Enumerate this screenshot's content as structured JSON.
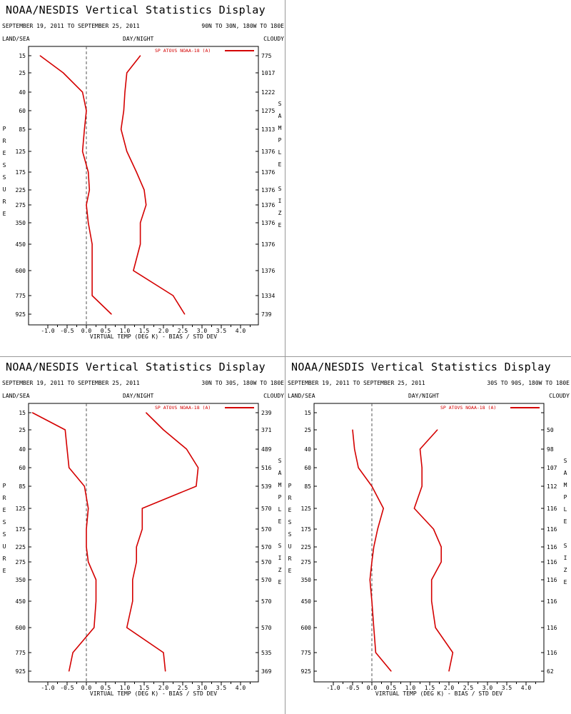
{
  "colors": {
    "series": "#d40000",
    "zero_line": "#555555",
    "frame": "#000000"
  },
  "panels": [
    {
      "title": "NOAA/NESDIS Vertical Statistics Display",
      "dates": "SEPTEMBER 19, 2011 TO SEPTEMBER 25, 2011",
      "region": "90N TO 30N, 180W TO 180E",
      "land_sea": "LAND/SEA",
      "day_night": "DAY/NIGHT",
      "cloudy": "CLOUDY",
      "legend": "SP ATOVS NOAA-18 (A)",
      "xlabel": "VIRTUAL TEMP (DEG K) - BIAS / STD DEV",
      "left_vertical": "PRESSURE",
      "right_vertical": "SAMPLE SIZE",
      "sample_sizes": [
        "775",
        "1017",
        "1222",
        "1275",
        "1313",
        "1376",
        "1376",
        "1376",
        "1376",
        "1376",
        "1376",
        "1376",
        "1334",
        "739"
      ]
    },
    {
      "title": "NOAA/NESDIS Vertical Statistics Display",
      "dates": "SEPTEMBER 19, 2011 TO SEPTEMBER 25, 2011",
      "region": "30N TO 30S, 180W TO 180E",
      "land_sea": "LAND/SEA",
      "day_night": "DAY/NIGHT",
      "cloudy": "CLOUDY",
      "legend": "SP ATOVS NOAA-18 (A)",
      "xlabel": "VIRTUAL TEMP (DEG K) - BIAS / STD DEV",
      "left_vertical": "PRESSURE",
      "right_vertical": "SAMPLE SIZE",
      "sample_sizes": [
        "239",
        "371",
        "489",
        "516",
        "539",
        "570",
        "570",
        "570",
        "570",
        "570",
        "570",
        "570",
        "535",
        "369"
      ]
    },
    {
      "title": "NOAA/NESDIS Vertical Statistics Display",
      "dates": "SEPTEMBER 19, 2011 TO SEPTEMBER 25, 2011",
      "region": "30S TO 90S, 180W TO 180E",
      "land_sea": "LAND/SEA",
      "day_night": "DAY/NIGHT",
      "cloudy": "CLOUDY",
      "legend": "SP ATOVS NOAA-18 (A)",
      "xlabel": "VIRTUAL TEMP (DEG K) - BIAS / STD DEV",
      "left_vertical": "PRESSURE",
      "right_vertical": "SAMPLE SIZE",
      "sample_sizes": [
        "",
        "50",
        "98",
        "107",
        "112",
        "116",
        "116",
        "116",
        "116",
        "116",
        "116",
        "116",
        "116",
        "62"
      ]
    }
  ],
  "chart_data": [
    {
      "type": "line",
      "region": "90N TO 30N, 180W TO 180E",
      "xlabel": "VIRTUAL TEMP (DEG K) - BIAS / STD DEV",
      "ylabel": "PRESSURE",
      "pressure_levels": [
        15,
        25,
        40,
        60,
        85,
        125,
        175,
        225,
        275,
        350,
        450,
        600,
        775,
        925
      ],
      "x_ticks": [
        "-1.0",
        "-0.5",
        "0.0",
        "0.5",
        "1.0",
        "1.5",
        "2.0",
        "2.5",
        "3.0",
        "3.5",
        "4.0"
      ],
      "xlim": [
        -1.5,
        4.3
      ],
      "series": [
        {
          "name": "SP ATOVS NOAA-18 (A)",
          "values": [
            -1.2,
            -0.6,
            -0.1,
            0.0,
            -0.05,
            -0.1,
            0.05,
            0.08,
            0.0,
            0.05,
            0.15,
            0.15,
            0.15,
            0.65
          ]
        },
        {
          "values": [
            1.4,
            1.05,
            1.0,
            0.97,
            0.9,
            1.05,
            1.3,
            1.5,
            1.55,
            1.4,
            1.4,
            1.22,
            2.25,
            2.55
          ]
        }
      ]
    },
    {
      "type": "line",
      "region": "30N TO 30S, 180W TO 180E",
      "xlabel": "VIRTUAL TEMP (DEG K) - BIAS / STD DEV",
      "ylabel": "PRESSURE",
      "pressure_levels": [
        15,
        25,
        40,
        60,
        85,
        125,
        175,
        225,
        275,
        350,
        450,
        600,
        775,
        925
      ],
      "x_ticks": [
        "-1.0",
        "-0.5",
        "0.0",
        "0.5",
        "1.0",
        "1.5",
        "2.0",
        "2.5",
        "3.0",
        "3.5",
        "4.0"
      ],
      "xlim": [
        -1.5,
        4.3
      ],
      "series": [
        {
          "name": "SP ATOVS NOAA-18 (A)",
          "values": [
            -1.4,
            -0.55,
            -0.5,
            -0.45,
            -0.05,
            0.05,
            0.0,
            0.0,
            0.05,
            0.25,
            0.25,
            0.2,
            -0.35,
            -0.45
          ]
        },
        {
          "values": [
            1.55,
            2.0,
            2.6,
            2.9,
            2.85,
            1.45,
            1.45,
            1.3,
            1.3,
            1.2,
            1.2,
            1.05,
            2.0,
            2.05
          ]
        }
      ]
    },
    {
      "type": "line",
      "region": "30S TO 90S, 180W TO 180E",
      "xlabel": "VIRTUAL TEMP (DEG K) - BIAS / STD DEV",
      "ylabel": "PRESSURE",
      "pressure_levels": [
        15,
        25,
        40,
        60,
        85,
        125,
        175,
        225,
        275,
        350,
        450,
        600,
        775,
        925
      ],
      "x_ticks": [
        "-1.0",
        "-0.5",
        "0.0",
        "0.5",
        "1.0",
        "1.5",
        "2.0",
        "2.5",
        "3.0",
        "3.5",
        "4.0"
      ],
      "xlim": [
        -1.5,
        4.3
      ],
      "series": [
        {
          "name": "SP ATOVS NOAA-18 (A)",
          "values": [
            null,
            -0.5,
            -0.45,
            -0.35,
            0.0,
            0.3,
            0.15,
            0.05,
            0.0,
            -0.05,
            0.0,
            0.05,
            0.1,
            0.5
          ]
        },
        {
          "values": [
            null,
            1.7,
            1.25,
            1.3,
            1.3,
            1.1,
            1.6,
            1.8,
            1.8,
            1.55,
            1.55,
            1.65,
            2.1,
            2.0
          ]
        }
      ]
    }
  ]
}
